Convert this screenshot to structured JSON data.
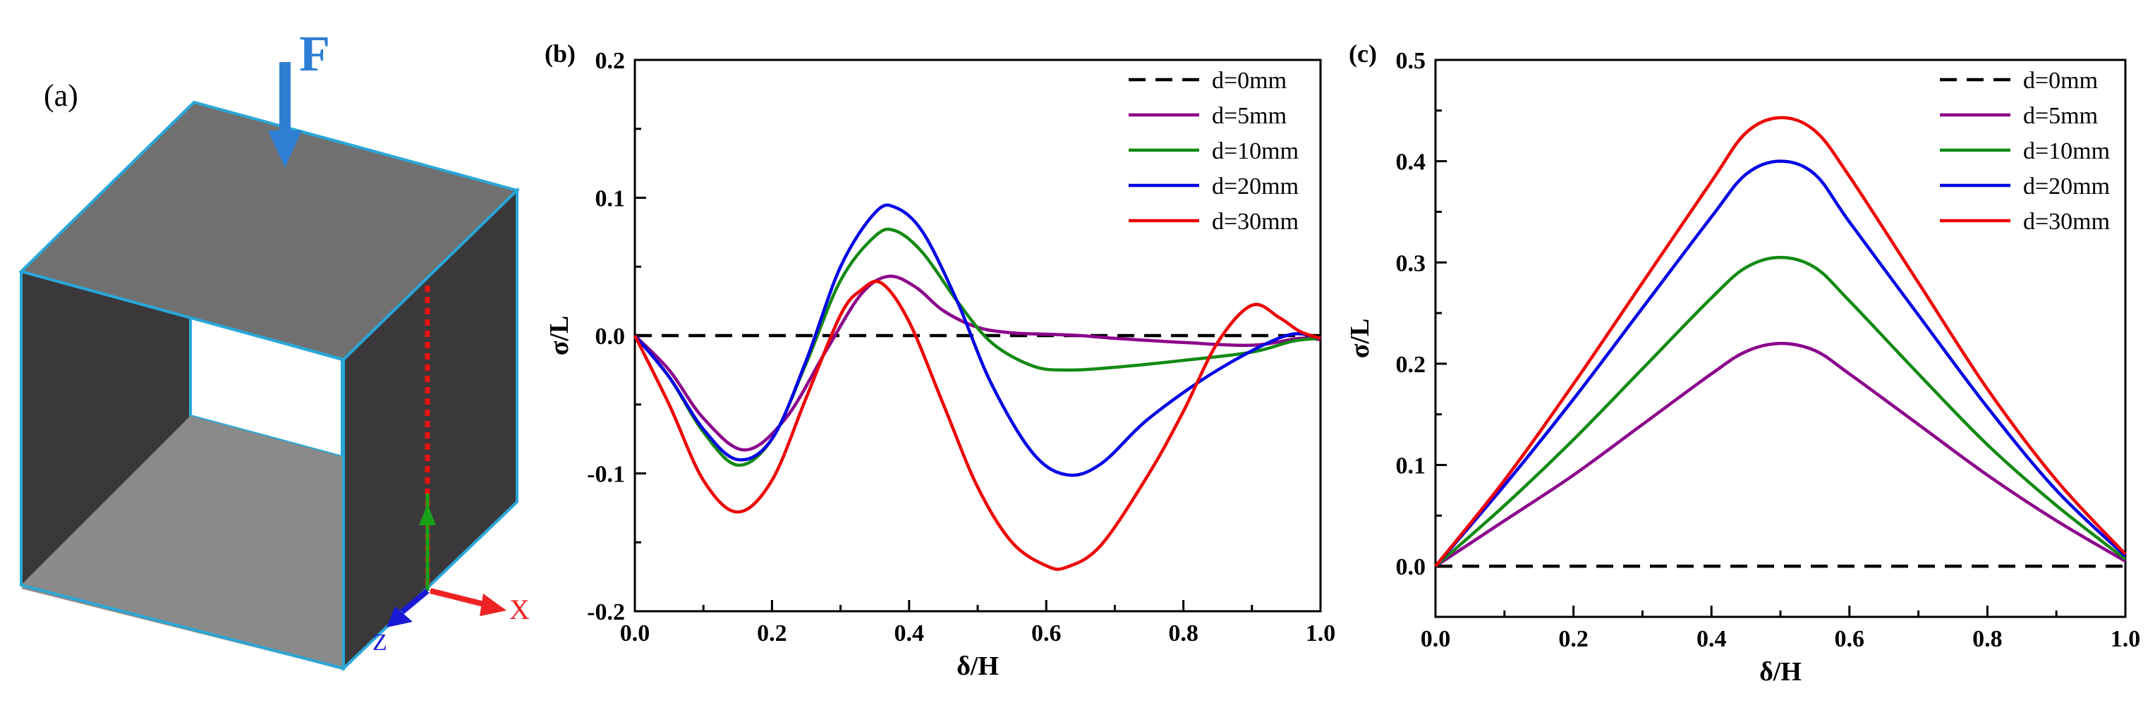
{
  "panel_a": {
    "label": "(a)",
    "force_label": "F",
    "axis_x_label": "X",
    "axis_z_label": "Z"
  },
  "chart_data": [
    {
      "type": "line",
      "panel_label": "(b)",
      "xlabel": "δ/H",
      "ylabel": "σ/L",
      "xlim": [
        0.0,
        1.0
      ],
      "ylim": [
        -0.2,
        0.2
      ],
      "xticks": [
        "0.0",
        "0.2",
        "0.4",
        "0.6",
        "0.8",
        "1.0"
      ],
      "yticks": [
        "-0.2",
        "-0.1",
        "0.0",
        "0.1",
        "0.2"
      ],
      "legend_position": "top-right",
      "series": [
        {
          "name": "d=0mm",
          "color": "#000000",
          "dash": true,
          "x": [
            0,
            1
          ],
          "y": [
            0,
            0
          ]
        },
        {
          "name": "d=5mm",
          "color": "#8b008b",
          "dash": false,
          "x": [
            0,
            0.05,
            0.1,
            0.16,
            0.22,
            0.28,
            0.33,
            0.37,
            0.41,
            0.45,
            0.5,
            0.55,
            0.6,
            0.65,
            0.7,
            0.8,
            0.9,
            0.97,
            1.0
          ],
          "y": [
            0,
            -0.025,
            -0.06,
            -0.083,
            -0.06,
            -0.01,
            0.03,
            0.043,
            0.035,
            0.018,
            0.006,
            0.002,
            0.001,
            0.0,
            -0.002,
            -0.005,
            -0.007,
            -0.002,
            -0.003
          ]
        },
        {
          "name": "d=10mm",
          "color": "#138a13",
          "dash": false,
          "x": [
            0,
            0.05,
            0.1,
            0.15,
            0.2,
            0.25,
            0.3,
            0.35,
            0.38,
            0.42,
            0.47,
            0.52,
            0.58,
            0.63,
            0.7,
            0.8,
            0.9,
            0.96,
            1.0
          ],
          "y": [
            0,
            -0.03,
            -0.07,
            -0.094,
            -0.075,
            -0.02,
            0.04,
            0.072,
            0.076,
            0.06,
            0.025,
            -0.005,
            -0.022,
            -0.025,
            -0.023,
            -0.018,
            -0.012,
            -0.004,
            -0.002
          ]
        },
        {
          "name": "d=20mm",
          "color": "#0000e6",
          "dash": false,
          "x": [
            0,
            0.05,
            0.1,
            0.15,
            0.2,
            0.25,
            0.3,
            0.35,
            0.38,
            0.42,
            0.47,
            0.52,
            0.58,
            0.63,
            0.68,
            0.75,
            0.85,
            0.95,
            1.0
          ],
          "y": [
            0,
            -0.03,
            -0.068,
            -0.09,
            -0.075,
            -0.018,
            0.05,
            0.089,
            0.093,
            0.075,
            0.025,
            -0.035,
            -0.085,
            -0.101,
            -0.093,
            -0.06,
            -0.025,
            0.0,
            -0.002
          ]
        },
        {
          "name": "d=30mm",
          "color": "#ee0000",
          "dash": false,
          "x": [
            0,
            0.05,
            0.1,
            0.15,
            0.2,
            0.25,
            0.3,
            0.33,
            0.36,
            0.4,
            0.45,
            0.5,
            0.55,
            0.6,
            0.63,
            0.68,
            0.75,
            0.8,
            0.85,
            0.9,
            0.94,
            0.97,
            1.0
          ],
          "y": [
            0,
            -0.05,
            -0.105,
            -0.128,
            -0.105,
            -0.045,
            0.015,
            0.033,
            0.038,
            0.01,
            -0.05,
            -0.11,
            -0.15,
            -0.167,
            -0.168,
            -0.152,
            -0.1,
            -0.055,
            -0.005,
            0.022,
            0.013,
            0.003,
            -0.002
          ]
        }
      ]
    },
    {
      "type": "line",
      "panel_label": "(c)",
      "xlabel": "δ/H",
      "ylabel": "σ/L",
      "xlim": [
        0.0,
        1.0
      ],
      "ylim": [
        -0.05,
        0.5
      ],
      "xticks": [
        "0.0",
        "0.2",
        "0.4",
        "0.6",
        "0.8",
        "1.0"
      ],
      "yticks": [
        "0.0",
        "0.1",
        "0.2",
        "0.3",
        "0.4",
        "0.5"
      ],
      "legend_position": "top-right",
      "series": [
        {
          "name": "d=0mm",
          "color": "#000000",
          "dash": true,
          "x": [
            0,
            1
          ],
          "y": [
            0,
            0
          ]
        },
        {
          "name": "d=5mm",
          "color": "#8b008b",
          "dash": false,
          "x": [
            0,
            0.1,
            0.2,
            0.3,
            0.4,
            0.45,
            0.5,
            0.55,
            0.6,
            0.7,
            0.8,
            0.9,
            1.0
          ],
          "y": [
            0,
            0.045,
            0.09,
            0.14,
            0.19,
            0.212,
            0.22,
            0.213,
            0.19,
            0.14,
            0.09,
            0.045,
            0.005
          ]
        },
        {
          "name": "d=10mm",
          "color": "#138a13",
          "dash": false,
          "x": [
            0,
            0.1,
            0.2,
            0.3,
            0.4,
            0.45,
            0.5,
            0.55,
            0.6,
            0.7,
            0.8,
            0.9,
            1.0
          ],
          "y": [
            0,
            0.06,
            0.125,
            0.195,
            0.265,
            0.295,
            0.305,
            0.295,
            0.262,
            0.19,
            0.12,
            0.06,
            0.007
          ]
        },
        {
          "name": "d=20mm",
          "color": "#0000e6",
          "dash": false,
          "x": [
            0,
            0.1,
            0.2,
            0.3,
            0.4,
            0.45,
            0.5,
            0.55,
            0.6,
            0.7,
            0.8,
            0.9,
            1.0
          ],
          "y": [
            0,
            0.08,
            0.165,
            0.255,
            0.345,
            0.387,
            0.4,
            0.387,
            0.34,
            0.248,
            0.157,
            0.075,
            0.01
          ]
        },
        {
          "name": "d=30mm",
          "color": "#ee0000",
          "dash": false,
          "x": [
            0,
            0.1,
            0.2,
            0.3,
            0.4,
            0.45,
            0.5,
            0.55,
            0.6,
            0.7,
            0.8,
            0.9,
            1.0
          ],
          "y": [
            0,
            0.085,
            0.18,
            0.28,
            0.38,
            0.428,
            0.443,
            0.43,
            0.385,
            0.28,
            0.175,
            0.085,
            0.012
          ]
        }
      ]
    }
  ]
}
